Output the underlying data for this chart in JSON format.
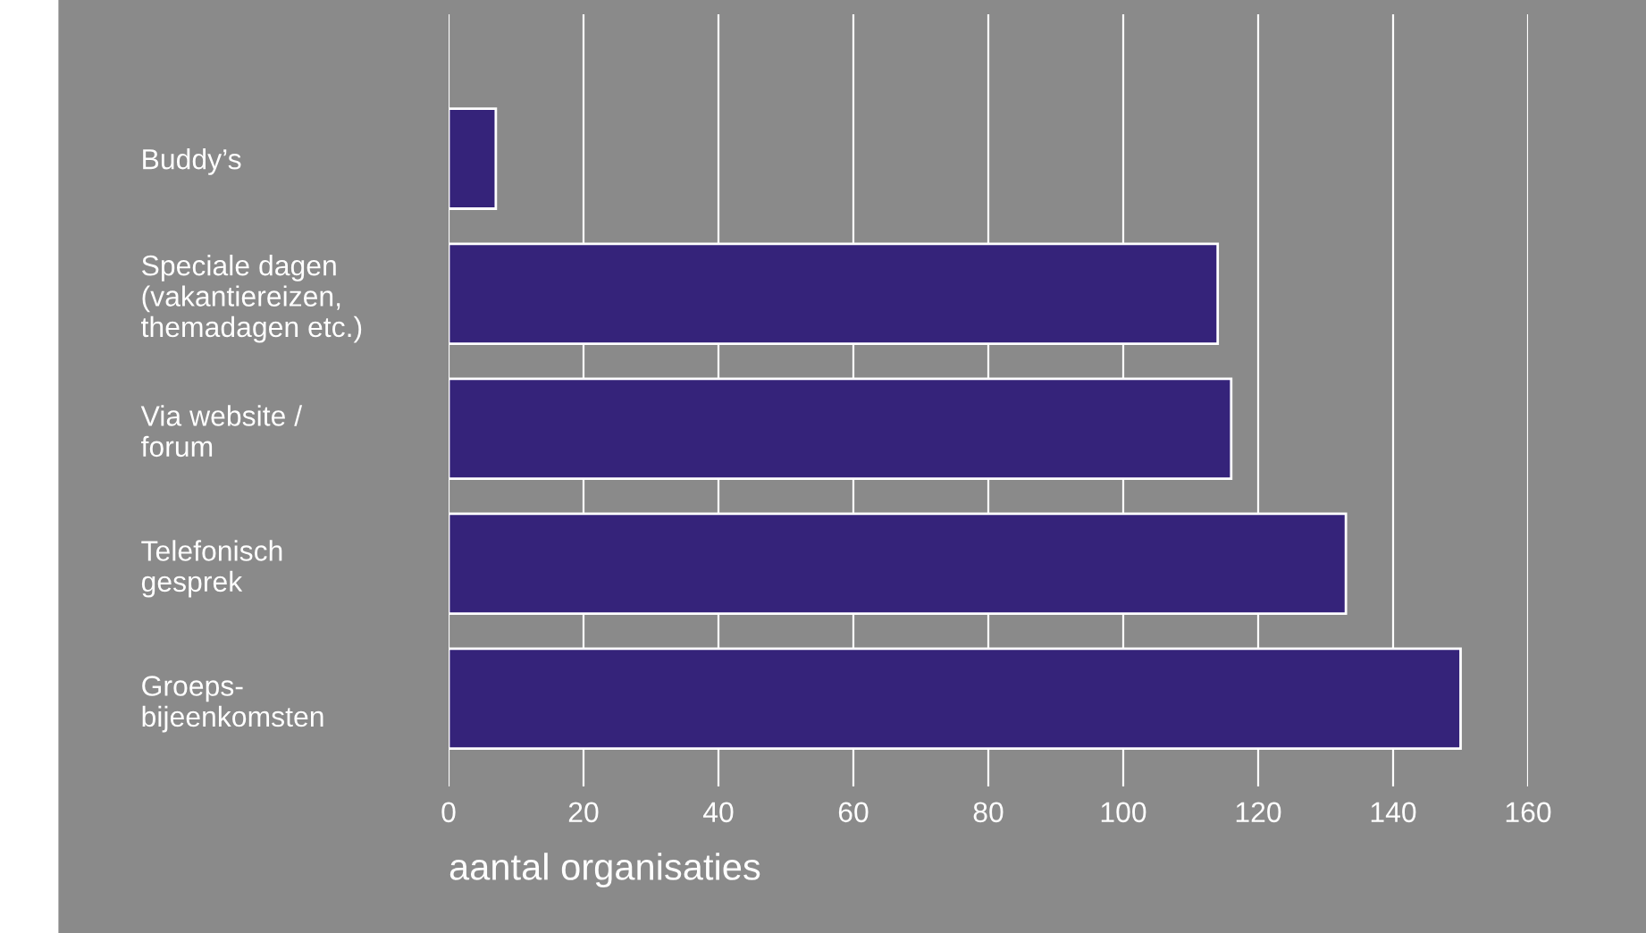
{
  "chart_data": {
    "type": "bar",
    "orientation": "horizontal",
    "xlabel": "aantal organisaties",
    "categories": [
      "Buddy’s",
      "Speciale dagen\n(vakantiereizen,\nthemadagen etc.)",
      "Via website /\nforum",
      "Telefonisch\ngesprek",
      "Groeps-\nbijeenkomsten"
    ],
    "values": [
      7,
      114,
      116,
      133,
      150
    ],
    "color": "#35237a",
    "xlim": [
      0,
      160
    ],
    "xticks": [
      0,
      20,
      40,
      60,
      80,
      100,
      120,
      140,
      160
    ],
    "grid": "x"
  }
}
